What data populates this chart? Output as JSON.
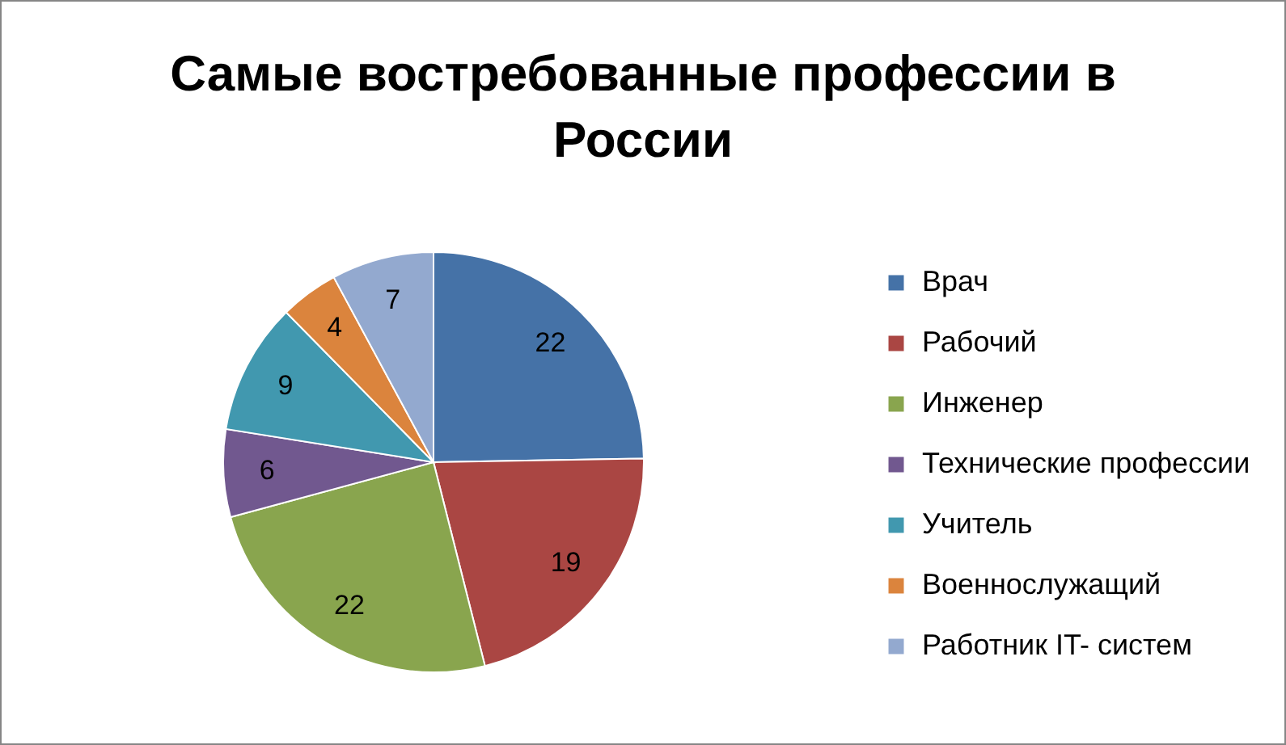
{
  "chart_data": {
    "type": "pie",
    "title": "Самые востребованные профессии в России",
    "categories": [
      "Врач",
      "Рабочий",
      "Инженер",
      "Технические профессии",
      "Учитель",
      "Военнослужащий",
      "Работник IT- систем"
    ],
    "values": [
      22,
      19,
      22,
      6,
      9,
      4,
      7
    ],
    "colors": [
      "#4572a7",
      "#aa4643",
      "#89a54e",
      "#71588f",
      "#4198af",
      "#db843d",
      "#93a9cf"
    ],
    "data_labels": true,
    "legend": "right"
  }
}
